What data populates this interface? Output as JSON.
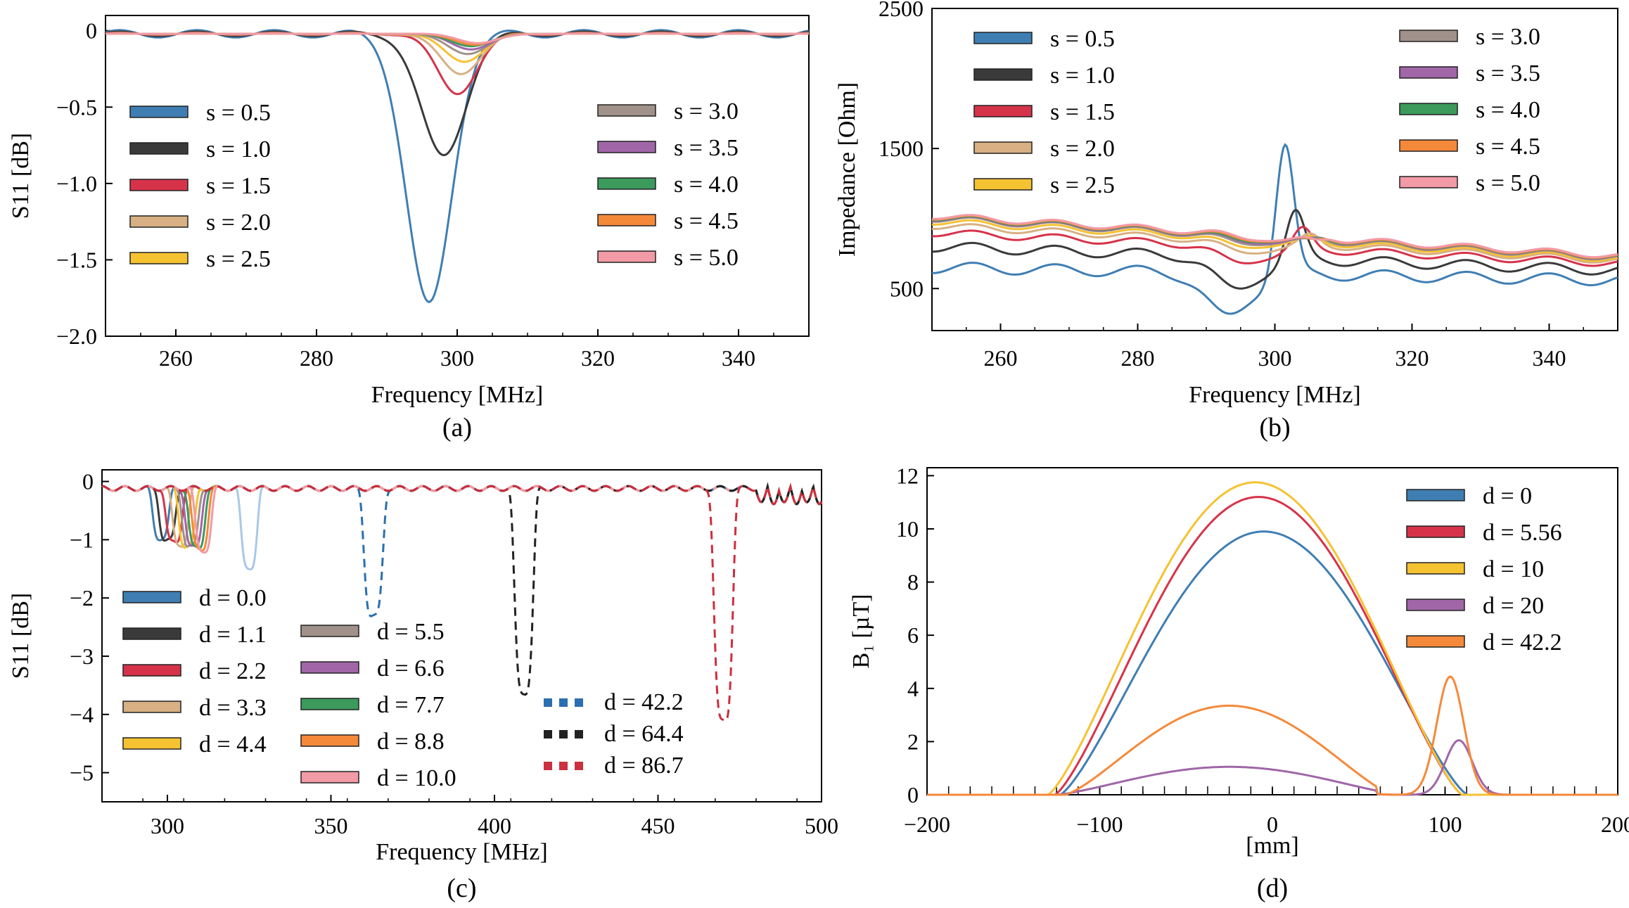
{
  "chart_data": [
    {
      "panel": "a",
      "caption": "(a)",
      "type": "line",
      "title": "",
      "xlabel": "Frequency [MHz]",
      "ylabel": "S11 [dB]",
      "xlim": [
        250,
        350
      ],
      "ylim": [
        -2.0,
        0.1
      ],
      "xticks": [
        260,
        280,
        300,
        320,
        340
      ],
      "yticks": [
        0,
        -0.5,
        -1.0,
        -1.5,
        -2.0
      ],
      "ytick_labels": [
        "0",
        "−0.5",
        "−1.0",
        "−1.5",
        "−2.0"
      ],
      "legend_columns": 2,
      "series": [
        {
          "name": "s = 0.5",
          "color": "#3f7eb3",
          "f0": 296,
          "depth": 1.78,
          "width": 4.5,
          "ripple": 0.02
        },
        {
          "name": "s = 1.0",
          "color": "#3a3a3a",
          "f0": 298,
          "depth": 0.8,
          "width": 4.5,
          "ripple": 0.012
        },
        {
          "name": "s = 1.5",
          "color": "#d6334a",
          "f0": 300,
          "depth": 0.39,
          "width": 4.0,
          "ripple": 0.006
        },
        {
          "name": "s = 2.0",
          "color": "#d8b083",
          "f0": 300.5,
          "depth": 0.26,
          "width": 4.0,
          "ripple": 0.004
        },
        {
          "name": "s = 2.5",
          "color": "#f5c232",
          "f0": 301,
          "depth": 0.18,
          "width": 4.0,
          "ripple": 0.003
        },
        {
          "name": "s = 3.0",
          "color": "#a0928a",
          "f0": 301.5,
          "depth": 0.13,
          "width": 4.0,
          "ripple": 0.002
        },
        {
          "name": "s = 3.5",
          "color": "#a066a8",
          "f0": 302,
          "depth": 0.1,
          "width": 4.0,
          "ripple": 0.002
        },
        {
          "name": "s = 4.0",
          "color": "#3c9a5c",
          "f0": 302,
          "depth": 0.08,
          "width": 4.0,
          "ripple": 0.001
        },
        {
          "name": "s = 4.5",
          "color": "#f5893a",
          "f0": 302.5,
          "depth": 0.07,
          "width": 4.0,
          "ripple": 0.001
        },
        {
          "name": "s = 5.0",
          "color": "#f29aa6",
          "f0": 303,
          "depth": 0.06,
          "width": 4.0,
          "ripple": 0.001
        }
      ]
    },
    {
      "panel": "b",
      "caption": "(b)",
      "type": "line",
      "title": "",
      "xlabel": "Frequency [MHz]",
      "ylabel": "Impedance [Ohm]",
      "xlim": [
        250,
        350
      ],
      "ylim": [
        200,
        2500
      ],
      "xticks": [
        260,
        280,
        300,
        320,
        340
      ],
      "yticks": [
        500,
        1500,
        2500
      ],
      "ytick_labels": [
        "500",
        "1500",
        "2500"
      ],
      "legend_columns": 2,
      "series": [
        {
          "name": "s = 0.5",
          "color": "#3f7eb3",
          "base_start": 650,
          "base_end": 560,
          "f0": 301.5,
          "peak": 1550,
          "dip": 320
        },
        {
          "name": "s = 1.0",
          "color": "#3a3a3a",
          "base_start": 800,
          "base_end": 630,
          "f0": 303,
          "peak": 1080,
          "dip": 500
        },
        {
          "name": "s = 1.5",
          "color": "#d6334a",
          "base_start": 900,
          "base_end": 680,
          "f0": 304,
          "peak": 950,
          "dip": 680
        },
        {
          "name": "s = 2.0",
          "color": "#d8b083",
          "base_start": 950,
          "base_end": 700,
          "f0": 305,
          "peak": 900,
          "dip": 750
        },
        {
          "name": "s = 2.5",
          "color": "#f5c232",
          "base_start": 980,
          "base_end": 710,
          "f0": 305,
          "peak": 880,
          "dip": 790
        },
        {
          "name": "s = 3.0",
          "color": "#a0928a",
          "base_start": 1000,
          "base_end": 720,
          "f0": 305.5,
          "peak": 870,
          "dip": 810
        },
        {
          "name": "s = 3.5",
          "color": "#a066a8",
          "base_start": 1005,
          "base_end": 725,
          "f0": 306,
          "peak": 865,
          "dip": 820
        },
        {
          "name": "s = 4.0",
          "color": "#3c9a5c",
          "base_start": 1010,
          "base_end": 728,
          "f0": 306,
          "peak": 860,
          "dip": 830
        },
        {
          "name": "s = 4.5",
          "color": "#f5893a",
          "base_start": 1015,
          "base_end": 730,
          "f0": 306.5,
          "peak": 855,
          "dip": 835
        },
        {
          "name": "s = 5.0",
          "color": "#f29aa6",
          "base_start": 1020,
          "base_end": 735,
          "f0": 307,
          "peak": 850,
          "dip": 840
        }
      ]
    },
    {
      "panel": "c",
      "caption": "(c)",
      "type": "line",
      "title": "",
      "xlabel": "Frequency [MHz]",
      "ylabel": "S11 [dB]",
      "xlim": [
        280,
        500
      ],
      "ylim": [
        -5.5,
        0.2
      ],
      "xticks": [
        300,
        350,
        400,
        450,
        500
      ],
      "yticks": [
        0,
        -1,
        -2,
        -3,
        -4,
        -5
      ],
      "ytick_labels": [
        "0",
        "−1",
        "−2",
        "−3",
        "−4",
        "−5"
      ],
      "legend_columns": 3,
      "series": [
        {
          "name": "d = 0.0",
          "color": "#3f7eb3",
          "style": "solid",
          "f0": 298,
          "depth": 0.85
        },
        {
          "name": "d = 1.1",
          "color": "#3a3a3a",
          "style": "solid",
          "f0": 300,
          "depth": 0.9
        },
        {
          "name": "d = 2.2",
          "color": "#d6334a",
          "style": "solid",
          "f0": 302,
          "depth": 0.93
        },
        {
          "name": "d = 3.3",
          "color": "#d8b083",
          "style": "solid",
          "f0": 304,
          "depth": 0.96
        },
        {
          "name": "d = 4.4",
          "color": "#f5c232",
          "style": "solid",
          "f0": 306,
          "depth": 0.99
        },
        {
          "name": "d = 5.5",
          "color": "#a0928a",
          "style": "solid",
          "f0": 307,
          "depth": 1.0
        },
        {
          "name": "d = 6.6",
          "color": "#a066a8",
          "style": "solid",
          "f0": 308,
          "depth": 1.02
        },
        {
          "name": "d = 7.7",
          "color": "#3c9a5c",
          "style": "solid",
          "f0": 309,
          "depth": 1.03
        },
        {
          "name": "d = 8.8",
          "color": "#f5893a",
          "style": "solid",
          "f0": 310,
          "depth": 1.04
        },
        {
          "name": "d = 10.0",
          "color": "#f29aa6",
          "style": "solid",
          "f0": 311,
          "depth": 1.06
        },
        {
          "name": "d = 42.2",
          "color": "#2a6fb0",
          "style": "dashed",
          "f0": 363,
          "depth": 2.2
        },
        {
          "name": "d = 64.4",
          "color": "#222222",
          "style": "dashed",
          "f0": 409,
          "depth": 3.5
        },
        {
          "name": "d = 86.7",
          "color": "#cc2f3e",
          "style": "dashed",
          "f0": 470,
          "depth": 4.0
        }
      ],
      "extra_traces": [
        {
          "name": "unlabeled",
          "color": "#a9c8e6",
          "style": "solid",
          "f0": 325,
          "depth": 1.35
        }
      ]
    },
    {
      "panel": "d",
      "caption": "(d)",
      "type": "line",
      "title": "",
      "xlabel": "[mm]",
      "ylabel": "B₁ [µT]",
      "xlim": [
        -200,
        200
      ],
      "ylim": [
        0,
        12.3
      ],
      "xticks": [
        -200,
        -100,
        0,
        100,
        200
      ],
      "xtick_labels": [
        "−200",
        "−100",
        "0",
        "100",
        "200"
      ],
      "yticks": [
        0,
        2,
        4,
        6,
        8,
        10,
        12
      ],
      "legend_columns": 1,
      "series": [
        {
          "name": "d = 0",
          "color": "#3f7eb3",
          "peak": 9.9,
          "center": -5,
          "halfwidth": 118
        },
        {
          "name": "d = 5.56",
          "color": "#d6334a",
          "peak": 11.2,
          "center": -8,
          "halfwidth": 118
        },
        {
          "name": "d = 10",
          "color": "#f5c232",
          "peak": 11.75,
          "center": -10,
          "halfwidth": 120
        },
        {
          "name": "d = 20",
          "color": "#a066a8",
          "peak": 1.05,
          "center": -25,
          "halfwidth": 100,
          "side_peak": 2.05,
          "side_center": 108
        },
        {
          "name": "d = 42.2",
          "color": "#f5893a",
          "peak": 3.35,
          "center": -25,
          "halfwidth": 95,
          "side_peak": 4.45,
          "side_center": 103
        }
      ]
    }
  ]
}
